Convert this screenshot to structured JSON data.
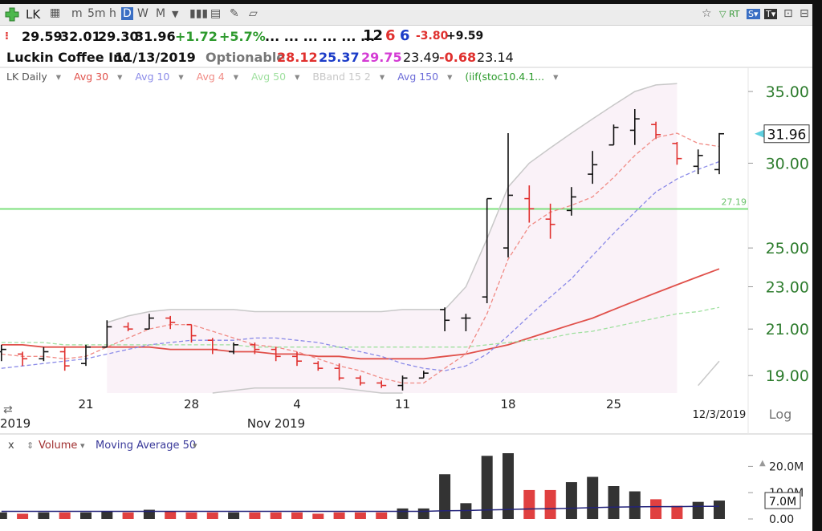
{
  "toolbar": {
    "symbol": "LK",
    "intervals": [
      "m",
      "5m",
      "h",
      "D",
      "W",
      "M"
    ]
  },
  "quote": {
    "row1": {
      "open": "29.59",
      "high": "32.01",
      "low": "29.30",
      "last": "31.96",
      "change": "+1.72",
      "change_pct": "+5.7%",
      "dots": "... ... ... ... ... ...",
      "n1": "12",
      "n2": "6",
      "n3": "6",
      "v1": "-3.80",
      "v2": "+9.59"
    },
    "row2": {
      "company": "Luckin Coffee Inc",
      "date": "11/13/2019",
      "optionable": "Optionable",
      "a": "28.12",
      "b": "25.37",
      "c": "29.75",
      "d": "23.49",
      "e": "-0.68",
      "f": "23.14"
    }
  },
  "chart_data": [
    {
      "type": "ohlc",
      "name": "LK Daily",
      "log_scale": true,
      "scale_label": "Log",
      "ylim": [
        18.3,
        36.8
      ],
      "yticks": [
        {
          "value": 19,
          "label": "19.00"
        },
        {
          "value": 21,
          "label": "21.00"
        },
        {
          "value": 23,
          "label": "23.00"
        },
        {
          "value": 25,
          "label": "25.00"
        },
        {
          "value": 30,
          "label": "30.00"
        },
        {
          "value": 35,
          "label": "35.00"
        }
      ],
      "categories": [
        null,
        null,
        null,
        null,
        "21",
        null,
        null,
        null,
        null,
        "28",
        null,
        null,
        null,
        null,
        "4",
        null,
        null,
        null,
        null,
        "11",
        null,
        null,
        null,
        null,
        "18",
        null,
        null,
        null,
        null,
        "25",
        null,
        null,
        null,
        null,
        null
      ],
      "year_label": "2019",
      "month_label": "Nov 2019",
      "last_date": "12/3/2019",
      "up_color": "#111111",
      "down_color": "#e0302e",
      "ohlc": {
        "open": [
          20.0,
          19.9,
          19.7,
          20.0,
          19.5,
          20.2,
          21.1,
          21.0,
          21.5,
          21.2,
          20.5,
          20.0,
          20.3,
          20.1,
          19.8,
          19.5,
          19.3,
          18.9,
          18.7,
          18.6,
          18.9,
          21.9,
          21.5,
          22.5,
          25.0,
          27.8,
          26.6,
          27.1,
          29.3,
          31.2,
          32.2,
          32.6,
          31.3,
          29.8,
          29.59
        ],
        "high": [
          20.3,
          20.0,
          20.2,
          20.2,
          20.3,
          21.4,
          21.3,
          21.7,
          21.6,
          21.2,
          20.6,
          20.4,
          20.4,
          20.2,
          20.0,
          19.6,
          19.5,
          19.0,
          18.8,
          19.0,
          19.2,
          22.0,
          21.7,
          27.8,
          32.0,
          28.6,
          27.5,
          28.5,
          30.8,
          32.6,
          33.7,
          32.8,
          31.4,
          30.9,
          32.01
        ],
        "low": [
          19.6,
          19.4,
          19.6,
          19.2,
          19.4,
          20.2,
          20.9,
          21.0,
          21.0,
          20.4,
          19.9,
          19.9,
          19.9,
          19.6,
          19.4,
          19.2,
          18.8,
          18.6,
          18.5,
          18.4,
          18.9,
          20.9,
          20.9,
          22.2,
          24.5,
          26.4,
          25.5,
          26.8,
          28.7,
          31.2,
          31.2,
          31.6,
          29.9,
          29.3,
          29.3
        ],
        "close": [
          20.1,
          19.7,
          20.0,
          19.4,
          20.2,
          21.1,
          21.0,
          21.5,
          21.3,
          20.7,
          20.1,
          20.3,
          20.1,
          19.8,
          19.6,
          19.3,
          18.9,
          18.7,
          18.6,
          18.9,
          19.1,
          21.4,
          21.5,
          27.8,
          28.0,
          27.2,
          26.3,
          27.9,
          29.9,
          32.4,
          33.0,
          31.9,
          30.3,
          30.5,
          31.96
        ]
      },
      "hlines": [
        {
          "value": 27.19,
          "color": "#7ee07e"
        }
      ],
      "series": [
        {
          "name": "Avg 30",
          "color": "#e0504a",
          "dash": false,
          "values": [
            20.3,
            20.3,
            20.2,
            20.2,
            20.2,
            20.2,
            20.2,
            20.2,
            20.1,
            20.1,
            20.1,
            20.0,
            20.0,
            19.9,
            19.9,
            19.8,
            19.8,
            19.7,
            19.7,
            19.7,
            19.7,
            19.8,
            19.9,
            20.1,
            20.3,
            20.6,
            20.9,
            21.2,
            21.5,
            21.9,
            22.3,
            22.7,
            23.1,
            23.5,
            23.9
          ]
        },
        {
          "name": "Avg 10",
          "color": "#8a8ae8",
          "dash": true,
          "values": [
            19.3,
            19.4,
            19.5,
            19.6,
            19.7,
            19.9,
            20.1,
            20.3,
            20.4,
            20.5,
            20.5,
            20.5,
            20.6,
            20.6,
            20.5,
            20.4,
            20.2,
            20.0,
            19.8,
            19.5,
            19.3,
            19.2,
            19.4,
            19.9,
            20.7,
            21.6,
            22.5,
            23.4,
            24.6,
            25.8,
            27.0,
            28.2,
            29.0,
            29.6,
            30.1
          ]
        },
        {
          "name": "Avg 4",
          "color": "#f08a84",
          "dash": true,
          "values": [
            19.9,
            19.8,
            19.8,
            19.7,
            19.8,
            20.2,
            20.6,
            21.0,
            21.2,
            21.2,
            20.9,
            20.6,
            20.3,
            20.2,
            20.0,
            19.7,
            19.4,
            19.2,
            18.9,
            18.7,
            18.7,
            19.3,
            19.9,
            21.7,
            24.4,
            26.2,
            27.0,
            27.4,
            27.9,
            29.1,
            30.5,
            31.7,
            32.0,
            31.3,
            31.1
          ]
        },
        {
          "name": "Avg 50",
          "color": "#9fe09f",
          "dash": true,
          "values": [
            20.4,
            20.4,
            20.4,
            20.3,
            20.3,
            20.3,
            20.3,
            20.3,
            20.3,
            20.3,
            20.3,
            20.3,
            20.2,
            20.2,
            20.2,
            20.2,
            20.2,
            20.2,
            20.2,
            20.2,
            20.2,
            20.2,
            20.2,
            20.3,
            20.4,
            20.5,
            20.6,
            20.8,
            20.9,
            21.1,
            21.3,
            21.5,
            21.7,
            21.8,
            22.0
          ]
        },
        {
          "name": "BBand 15 2",
          "color": "#c8c8c8",
          "fill": "#faf2f8",
          "upper": [
            null,
            null,
            null,
            null,
            null,
            21.3,
            21.6,
            21.8,
            21.9,
            21.9,
            21.9,
            21.9,
            21.8,
            21.8,
            21.8,
            21.8,
            21.8,
            21.8,
            21.8,
            21.9,
            21.9,
            21.9,
            23.0,
            25.5,
            28.5,
            30.0,
            31.0,
            32.0,
            33.0,
            34.0,
            35.0,
            35.5,
            35.6,
            null,
            null
          ],
          "lower": [
            null,
            null,
            null,
            null,
            null,
            null,
            null,
            null,
            null,
            null,
            18.3,
            18.4,
            18.5,
            18.5,
            18.5,
            18.5,
            18.5,
            18.4,
            18.3,
            18.3,
            null,
            null,
            null,
            null,
            null,
            null,
            null,
            null,
            null,
            null,
            null,
            null,
            null,
            18.6,
            19.6
          ]
        },
        {
          "name": "Avg 150",
          "color": "#6b6bd8"
        },
        {
          "name": "(iif(stoc10.4.1...",
          "color": "#2a9a2a"
        }
      ]
    },
    {
      "type": "bar",
      "close_label": "x",
      "ylim": [
        0,
        25
      ],
      "yticks": [
        {
          "value": 0,
          "label": "0.00"
        },
        {
          "value": 10,
          "label": "10.0M"
        },
        {
          "value": 20,
          "label": "20.0M"
        }
      ],
      "last_value_label": "7.0M",
      "series": [
        {
          "name": "Volume",
          "values": [
            2.5,
            2.0,
            2.5,
            2.5,
            2.5,
            3.0,
            2.5,
            3.5,
            3.0,
            2.5,
            2.5,
            2.5,
            2.5,
            2.5,
            2.5,
            2.0,
            2.5,
            2.5,
            2.5,
            4.0,
            4.0,
            17.0,
            6.0,
            24.0,
            25.0,
            11.0,
            11.0,
            14.0,
            16.0,
            12.5,
            10.5,
            7.5,
            5.0,
            6.5,
            7.0
          ]
        },
        {
          "name": "Moving Average 50",
          "color": "#23237a",
          "values": [
            2.9,
            2.9,
            2.9,
            2.9,
            2.9,
            2.9,
            2.9,
            2.9,
            2.9,
            2.9,
            2.9,
            2.9,
            2.9,
            2.9,
            2.9,
            2.9,
            2.9,
            2.9,
            2.9,
            2.9,
            2.9,
            3.1,
            3.2,
            3.4,
            3.6,
            3.8,
            3.9,
            4.1,
            4.3,
            4.5,
            4.6,
            4.7,
            4.7,
            4.8,
            4.8
          ]
        }
      ]
    }
  ]
}
